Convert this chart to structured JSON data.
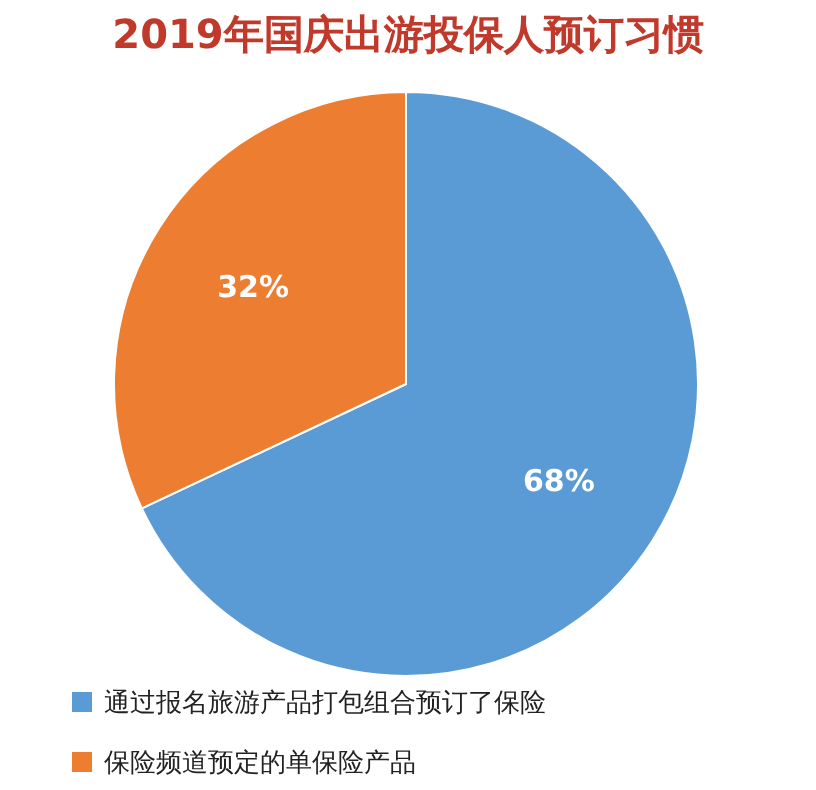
{
  "chart_data": {
    "type": "pie",
    "title": "2019年国庆出游投保人预订习惯",
    "categories": [
      "通过报名旅游产品打包组合预订了保险",
      "保险频道预定的单保险产品"
    ],
    "values": [
      68,
      32
    ],
    "colors": [
      "#5b9bd5",
      "#ed7d31"
    ],
    "value_labels": [
      "68%",
      "32%"
    ],
    "legend": "bottom"
  }
}
